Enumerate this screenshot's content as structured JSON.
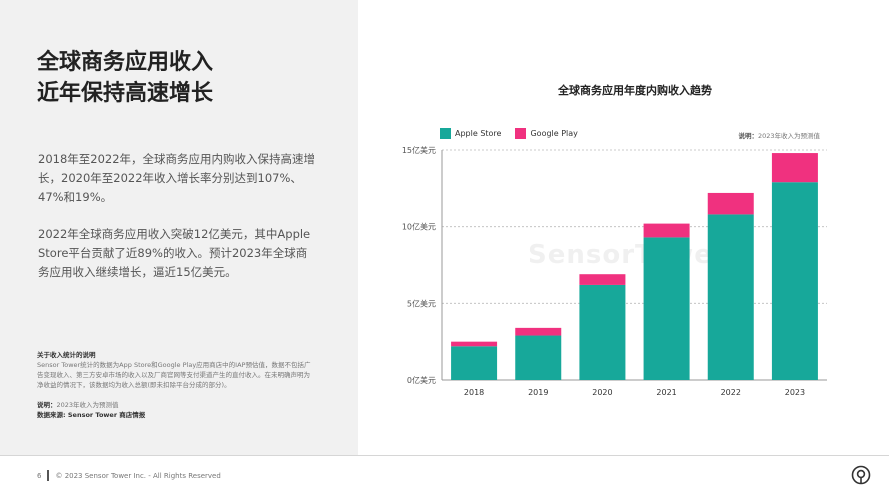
{
  "headline": {
    "line1": "全球商务应用收入",
    "line2": "近年保持高速增长"
  },
  "body": {
    "para1": "2018年至2022年，全球商务应用内购收入保持高速增长，2020年至2022年收入增长率分别达到107%、47%和19%。",
    "para2": "2022年全球商务应用收入突破12亿美元，其中Apple Store平台贡献了近89%的收入。预计2023年全球商务应用收入继续增长，逼近15亿美元。"
  },
  "notes": {
    "title": "关于收入统计的说明",
    "text": "Sensor Tower统计的数据为App Store和Google Play应用商店中的IAP预估值，数据不包括广告变现收入、第三方安卓市场的收入以及厂商官网等支付渠道产生的直付收入。在未明确声明为净收益的情况下，该数据均为收入总额(即未扣除平台分成的部分)。",
    "note_label": "说明：",
    "note_text": "2023年收入为预测值",
    "source_label": "数据来源: Sensor Tower 商店情报"
  },
  "footer": {
    "page": "6",
    "copyright": "© 2023 Sensor Tower Inc. - All Rights Reserved"
  },
  "watermark": "SensorTower",
  "colors": {
    "apple": "#17a89a",
    "google": "#f0317f"
  },
  "chart_data": {
    "type": "bar",
    "stacked": true,
    "title": "全球商务应用年度内购收入趋势",
    "note_label": "说明：",
    "note_text": "2023年收入为预测值",
    "categories": [
      "2018",
      "2019",
      "2020",
      "2021",
      "2022",
      "2023"
    ],
    "series": [
      {
        "name": "Apple Store",
        "color": "#17a89a",
        "values": [
          2.2,
          2.9,
          6.2,
          9.3,
          10.8,
          12.9
        ]
      },
      {
        "name": "Google Play",
        "color": "#f0317f",
        "values": [
          0.3,
          0.5,
          0.7,
          0.9,
          1.4,
          1.9
        ]
      }
    ],
    "yticks": [
      0,
      5,
      10,
      15
    ],
    "ytick_labels": [
      "0亿美元",
      "5亿美元",
      "10亿美元",
      "15亿美元"
    ],
    "ylim": [
      0,
      15
    ],
    "grid": true,
    "legend": "top-left"
  }
}
